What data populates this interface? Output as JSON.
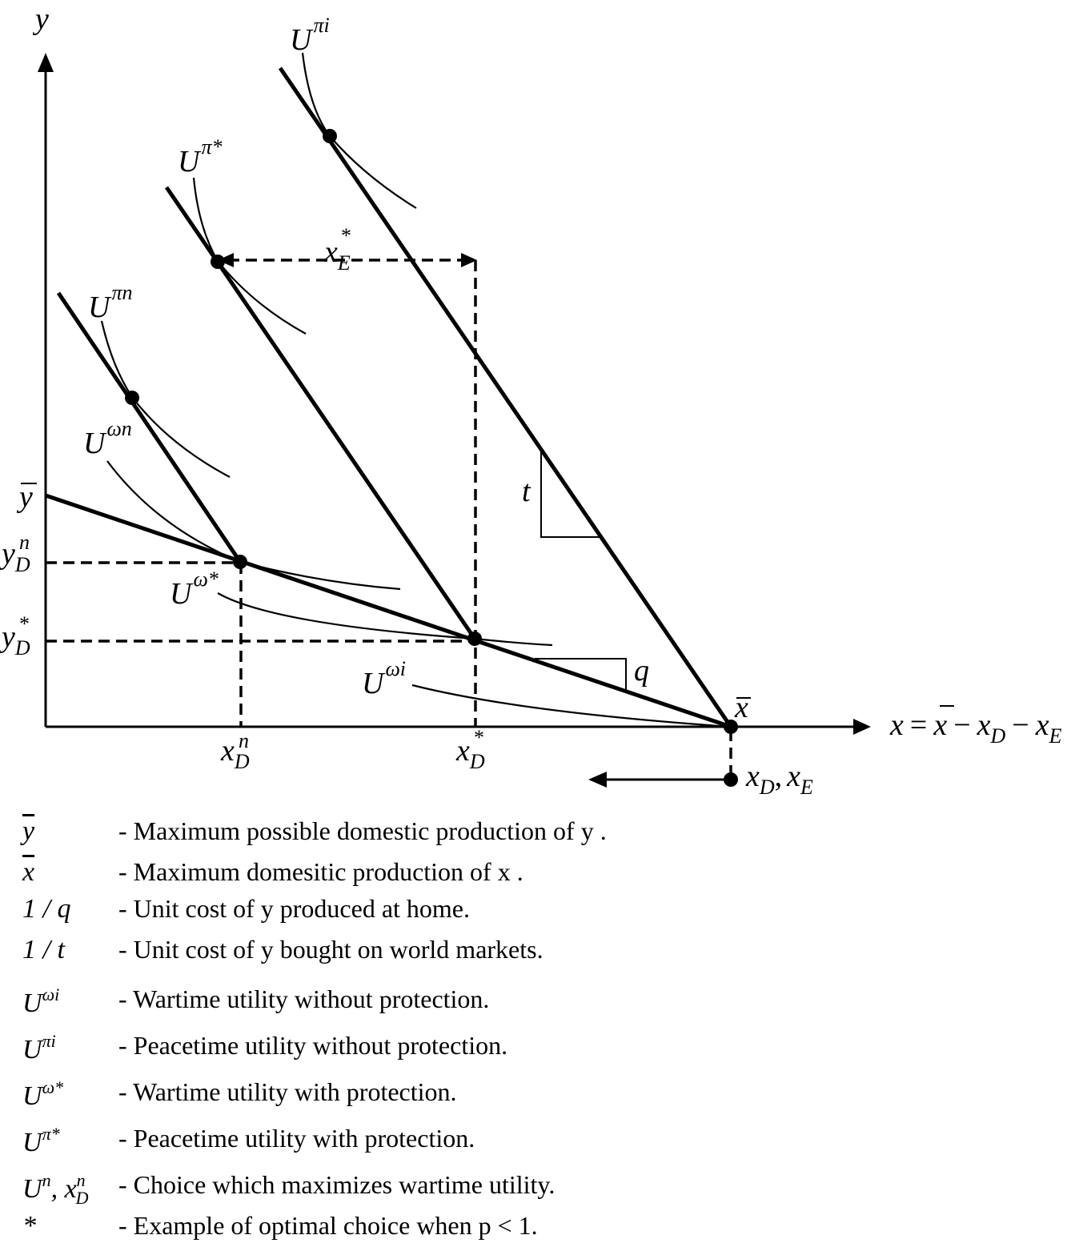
{
  "labels": {
    "y_axis": "y",
    "x_axis_x": "x",
    "x_axis_eq": "=",
    "x_axis_xbar": "x",
    "x_axis_minus1": "−",
    "x_axis_xD": "x",
    "x_axis_minus2": "−",
    "x_axis_xE": "x",
    "sub_D": "D",
    "sub_E": "E",
    "U": "U",
    "U_pi_i_sup": "πi",
    "U_pi_star_sup": "π*",
    "U_pi_n_sup": "πn",
    "U_omega_n_sup": "ωn",
    "U_omega_star_sup": "ω*",
    "U_omega_i_sup": "ωi",
    "x_E_star": "x",
    "star": "*",
    "n": "n",
    "t": "t",
    "q": "q",
    "y_bar": "y",
    "y_D_n": "y",
    "y_D_star": "y",
    "x_D_n": "x",
    "x_D_star": "x",
    "x_bar": "x",
    "xD_xE_x1": "x",
    "xD_xE_comma": ",",
    "xD_xE_x2": "x"
  },
  "legend": [
    {
      "symbol": "y",
      "overline": true,
      "desc": "- Maximum possible domestic production of  y ."
    },
    {
      "symbol": "x",
      "overline": true,
      "desc": "- Maximum domesitic production of  x ."
    },
    {
      "symbol": "1 / q",
      "desc": "- Unit cost of  y  produced at home."
    },
    {
      "symbol": "1 / t",
      "desc": "- Unit cost of  y  bought on world markets."
    },
    {
      "symbol": "U",
      "sup": "ωi",
      "desc": "- Wartime utility without protection."
    },
    {
      "symbol": "U",
      "sup": "πi",
      "desc": "- Peacetime utility without protection."
    },
    {
      "symbol": "U",
      "sup": "ω*",
      "desc": "- Wartime utility with protection."
    },
    {
      "symbol": "U",
      "sup": "π*",
      "desc": "- Peacetime utility with protection."
    },
    {
      "symbol": "U",
      "sup": "n",
      "extra": ", x",
      "extra_sup": "n",
      "extra_sub": "D",
      "desc": "- Choice which maximizes wartime utility."
    },
    {
      "symbol": "*",
      "desc": "- Example of optimal choice when  p < 1."
    }
  ]
}
